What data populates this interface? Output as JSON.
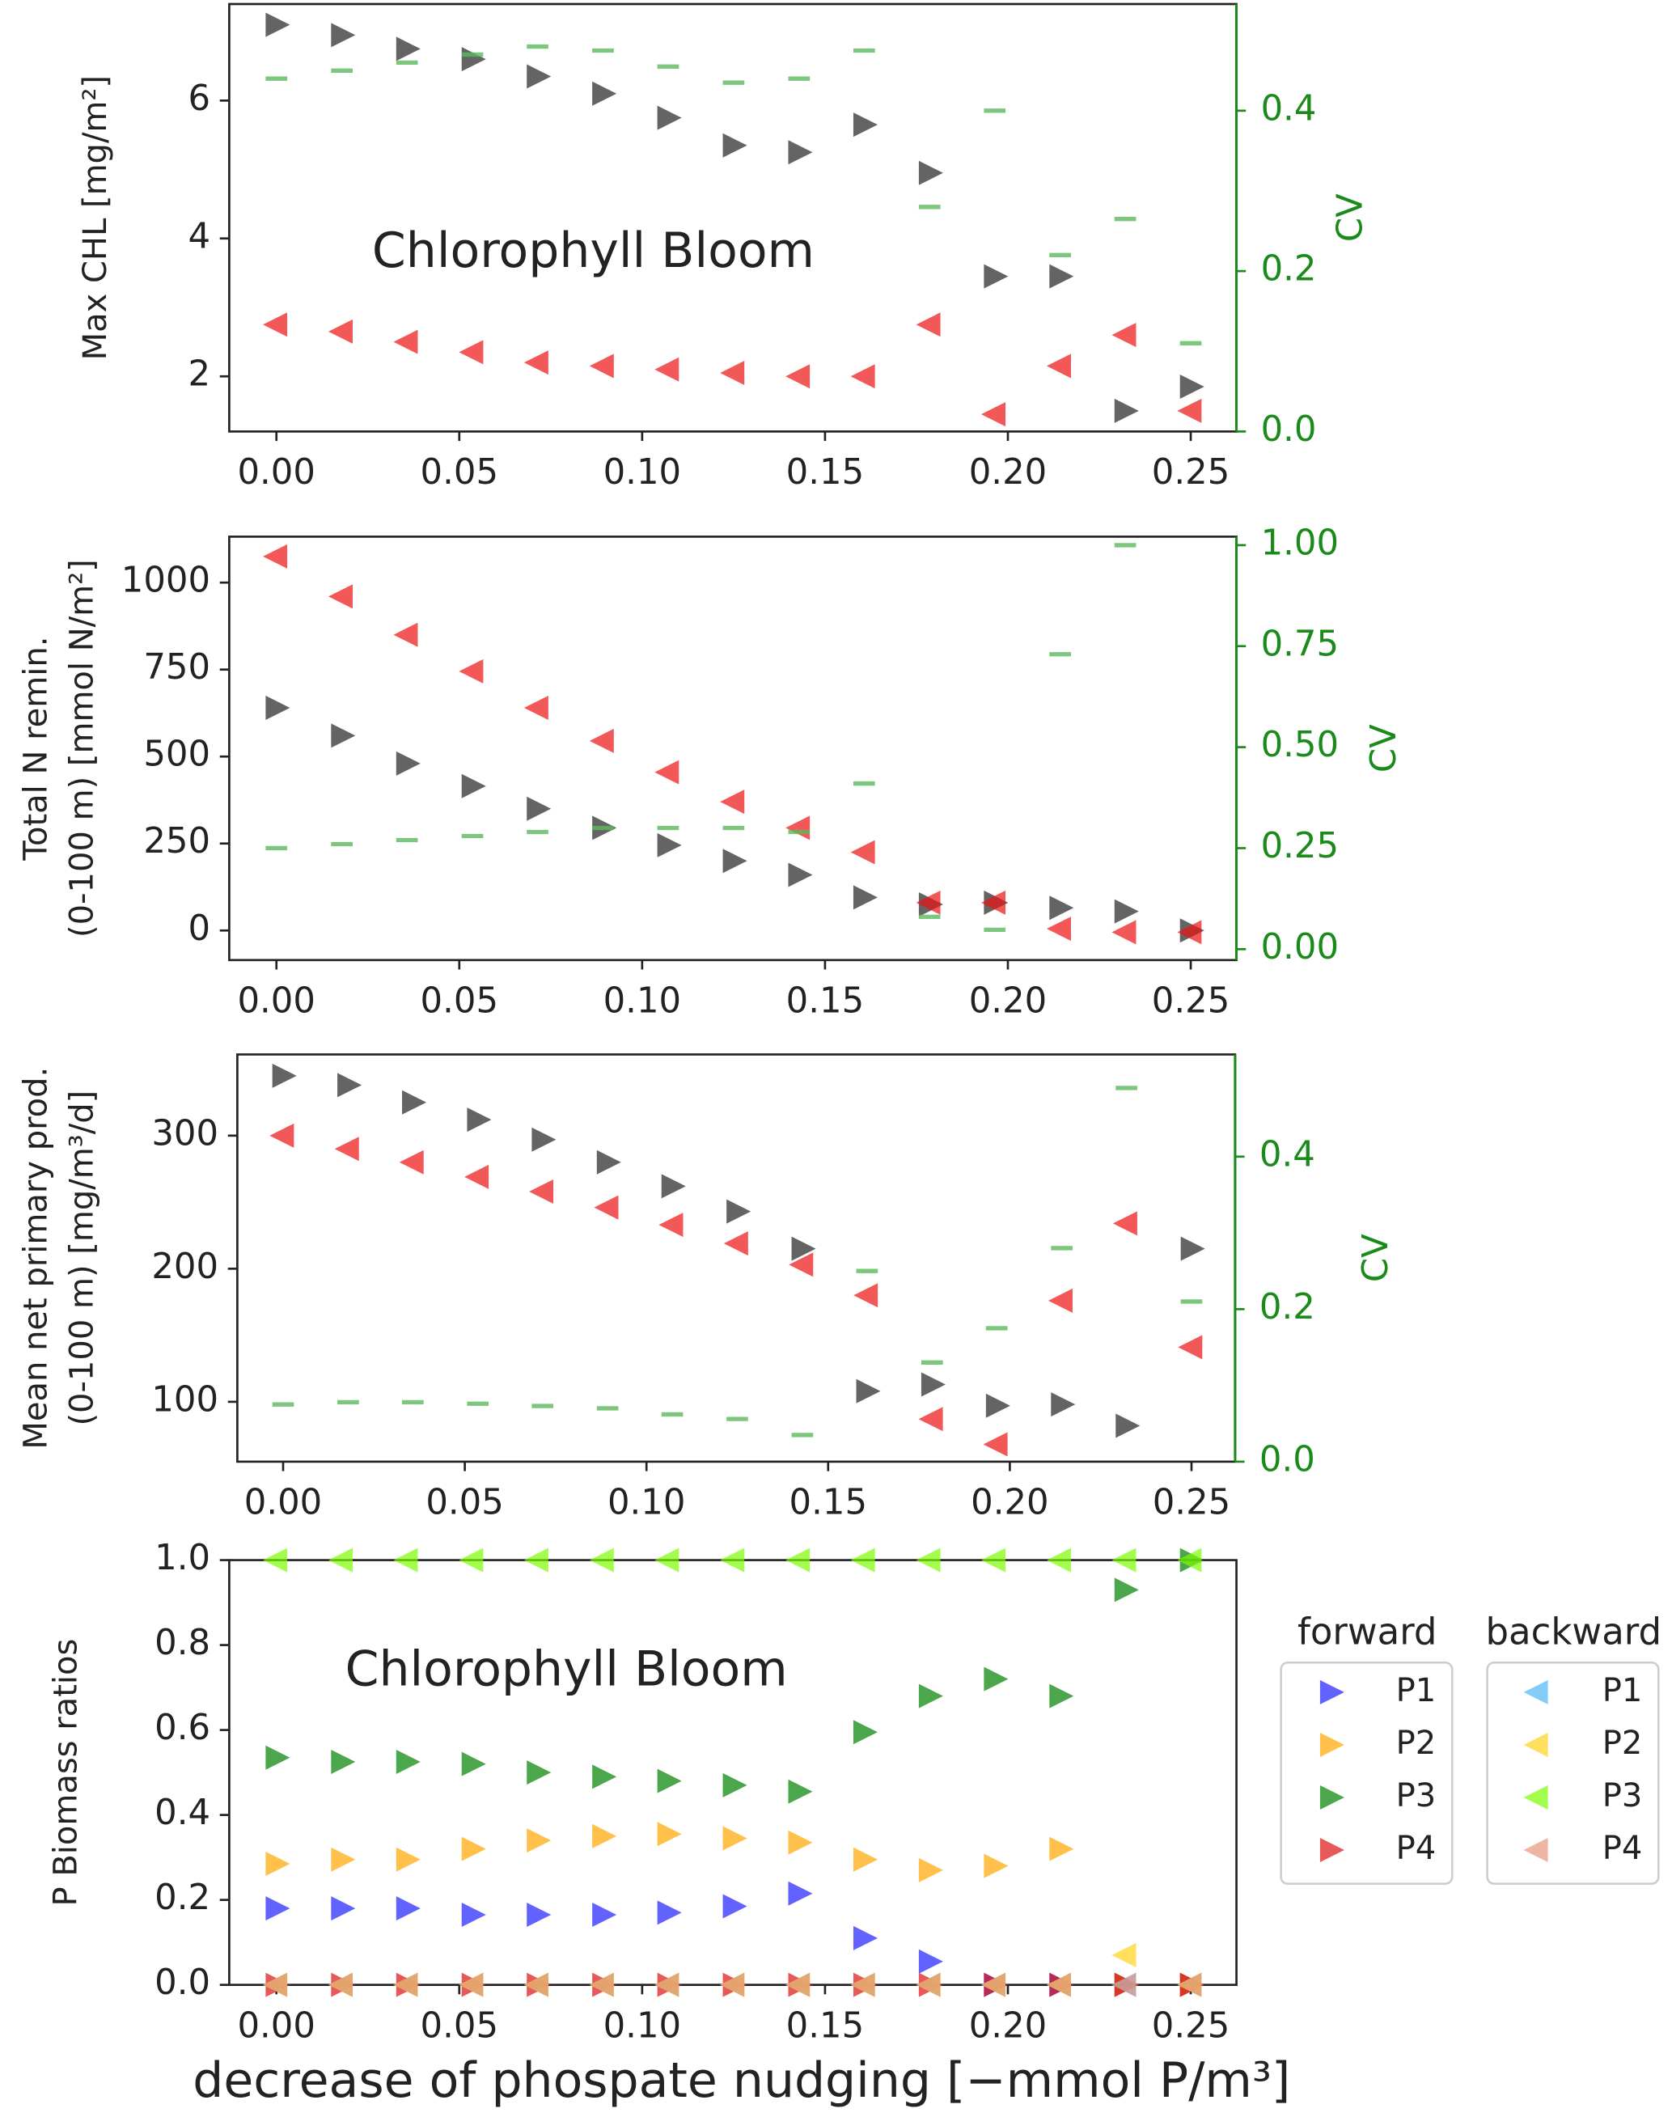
{
  "chart_data": [
    {
      "type": "scatter",
      "ylabel": [
        "Max CHL [mg/m²]"
      ],
      "y2label": "CV",
      "annotation": "Chlorophyll Bloom",
      "x": [
        0,
        0.0179,
        0.0357,
        0.0536,
        0.0714,
        0.0893,
        0.1071,
        0.125,
        0.1429,
        0.1607,
        0.1786,
        0.1964,
        0.2143,
        0.2321,
        0.25
      ],
      "xlim": [
        -0.0129,
        0.2625
      ],
      "xticks": [
        {
          "value": 0,
          "label": "0.00"
        },
        {
          "value": 0.05,
          "label": "0.05"
        },
        {
          "value": 0.1,
          "label": "0.10"
        },
        {
          "value": 0.15,
          "label": "0.15"
        },
        {
          "value": 0.2,
          "label": "0.20"
        },
        {
          "value": 0.25,
          "label": "0.25"
        }
      ],
      "ylim": [
        1.2,
        7.4
      ],
      "yticks": [
        2,
        4,
        6
      ],
      "y2lim": [
        0,
        0.533
      ],
      "y2ticks": [
        {
          "value": 0,
          "label": "0.0"
        },
        {
          "value": 0.2,
          "label": "0.2"
        },
        {
          "value": 0.4,
          "label": "0.4"
        }
      ],
      "y2color": "#1a8a1a",
      "series": [
        {
          "color": "#222222",
          "marker": ">",
          "values": [
            7.1,
            6.95,
            6.75,
            6.6,
            6.35,
            6.1,
            5.75,
            5.35,
            5.25,
            5.65,
            4.95,
            3.45,
            3.45,
            1.5,
            1.85
          ]
        },
        {
          "color": "#ee1111",
          "marker": "<",
          "values": [
            2.75,
            2.65,
            2.5,
            2.35,
            2.2,
            2.15,
            2.1,
            2.05,
            2.0,
            2.0,
            2.75,
            1.45,
            2.15,
            2.6,
            1.5
          ]
        },
        {
          "color": "#5cb85c",
          "marker": "_",
          "axis": "y2",
          "values": [
            0.44,
            0.45,
            0.46,
            0.47,
            0.48,
            0.475,
            0.455,
            0.435,
            0.44,
            0.475,
            0.28,
            0.4,
            0.22,
            0.265,
            0.11
          ]
        }
      ]
    },
    {
      "type": "scatter",
      "ylabel": [
        "Total N remin.",
        "(0-100 m) [mmol N/m²]"
      ],
      "y2label": "CV",
      "x": [
        0,
        0.0179,
        0.0357,
        0.0536,
        0.0714,
        0.0893,
        0.1071,
        0.125,
        0.1429,
        0.1607,
        0.1786,
        0.1964,
        0.2143,
        0.2321,
        0.25
      ],
      "xlim": [
        -0.0129,
        0.2625
      ],
      "xticks": [
        {
          "value": 0,
          "label": "0.00"
        },
        {
          "value": 0.05,
          "label": "0.05"
        },
        {
          "value": 0.1,
          "label": "0.10"
        },
        {
          "value": 0.15,
          "label": "0.15"
        },
        {
          "value": 0.2,
          "label": "0.20"
        },
        {
          "value": 0.25,
          "label": "0.25"
        }
      ],
      "ylim": [
        -85,
        1132
      ],
      "yticks": [
        0,
        250,
        500,
        750,
        1000
      ],
      "y2lim": [
        -0.027,
        1.021
      ],
      "y2ticks": [
        {
          "value": 0,
          "label": "0.00"
        },
        {
          "value": 0.25,
          "label": "0.25"
        },
        {
          "value": 0.5,
          "label": "0.50"
        },
        {
          "value": 0.75,
          "label": "0.75"
        },
        {
          "value": 1,
          "label": "1.00"
        }
      ],
      "y2color": "#1a8a1a",
      "series": [
        {
          "color": "#222222",
          "marker": ">",
          "values": [
            640,
            560,
            480,
            415,
            350,
            295,
            245,
            200,
            160,
            95,
            75,
            80,
            65,
            55,
            0
          ]
        },
        {
          "color": "#ee1111",
          "marker": "<",
          "values": [
            1075,
            960,
            850,
            745,
            640,
            545,
            455,
            370,
            295,
            225,
            80,
            80,
            5,
            -5,
            -5
          ]
        },
        {
          "color": "#5cb85c",
          "marker": "_",
          "axis": "y2",
          "values": [
            0.25,
            0.26,
            0.27,
            0.28,
            0.29,
            0.3,
            0.3,
            0.3,
            0.29,
            0.41,
            0.08,
            0.048,
            0.73,
            1.0,
            null
          ]
        }
      ]
    },
    {
      "type": "scatter",
      "ylabel": [
        "Mean net primary prod.",
        "(0-100 m) [mg/m³/d]"
      ],
      "y2label": "CV",
      "x": [
        0,
        0.0179,
        0.0357,
        0.0536,
        0.0714,
        0.0893,
        0.1071,
        0.125,
        0.1429,
        0.1607,
        0.1786,
        0.1964,
        0.2143,
        0.2321,
        0.25
      ],
      "xlim": [
        -0.0126,
        0.262
      ],
      "xticks": [
        {
          "value": 0,
          "label": "0.00"
        },
        {
          "value": 0.05,
          "label": "0.05"
        },
        {
          "value": 0.1,
          "label": "0.10"
        },
        {
          "value": 0.15,
          "label": "0.15"
        },
        {
          "value": 0.2,
          "label": "0.20"
        },
        {
          "value": 0.25,
          "label": "0.25"
        }
      ],
      "ylim": [
        55,
        361
      ],
      "yticks": [
        100,
        200,
        300
      ],
      "y2lim": [
        0,
        0.534
      ],
      "y2ticks": [
        {
          "value": 0,
          "label": "0.0"
        },
        {
          "value": 0.2,
          "label": "0.2"
        },
        {
          "value": 0.4,
          "label": "0.4"
        }
      ],
      "y2color": "#1a8a1a",
      "series": [
        {
          "color": "#222222",
          "marker": ">",
          "values": [
            345,
            338,
            325,
            312,
            297,
            280,
            262,
            243,
            215,
            108,
            113,
            97,
            98,
            82,
            215
          ]
        },
        {
          "color": "#ee1111",
          "marker": "<",
          "values": [
            300,
            290,
            280,
            269,
            258,
            246,
            233,
            219,
            203,
            180,
            87,
            68,
            176,
            234,
            141
          ]
        },
        {
          "color": "#5cb85c",
          "marker": "_",
          "axis": "y2",
          "values": [
            0.075,
            0.078,
            0.078,
            0.076,
            0.073,
            0.07,
            0.062,
            0.056,
            0.035,
            0.25,
            0.13,
            0.175,
            0.28,
            0.49,
            0.21
          ]
        }
      ]
    },
    {
      "type": "scatter",
      "ylabel": [
        "P Biomass ratios"
      ],
      "annotation": "Chlorophyll Bloom",
      "xlabel": "decrease of phospate nudging [−mmol P/m³]",
      "x": [
        0,
        0.0179,
        0.0357,
        0.0536,
        0.0714,
        0.0893,
        0.1071,
        0.125,
        0.1429,
        0.1607,
        0.1786,
        0.1964,
        0.2143,
        0.2321,
        0.25
      ],
      "xlim": [
        -0.0129,
        0.2625
      ],
      "xticks": [
        {
          "value": 0,
          "label": "0.00"
        },
        {
          "value": 0.05,
          "label": "0.05"
        },
        {
          "value": 0.1,
          "label": "0.10"
        },
        {
          "value": 0.15,
          "label": "0.15"
        },
        {
          "value": 0.2,
          "label": "0.20"
        },
        {
          "value": 0.25,
          "label": "0.25"
        }
      ],
      "ylim": [
        0,
        1
      ],
      "yticks": [
        {
          "value": 0,
          "label": "0.0"
        },
        {
          "value": 0.2,
          "label": "0.2"
        },
        {
          "value": 0.4,
          "label": "0.4"
        },
        {
          "value": 0.6,
          "label": "0.6"
        },
        {
          "value": 0.8,
          "label": "0.8"
        },
        {
          "value": 1,
          "label": "1.0"
        }
      ],
      "legend_titles": [
        "forward",
        "backward"
      ],
      "series": [
        {
          "name": "P1",
          "group": "forward",
          "color": "#1f1fff",
          "marker": ">",
          "values": [
            0.18,
            0.18,
            0.18,
            0.165,
            0.165,
            0.165,
            0.17,
            0.185,
            0.215,
            0.11,
            0.055,
            0,
            0,
            0,
            0
          ]
        },
        {
          "name": "P2",
          "group": "forward",
          "color": "#ffa500",
          "marker": ">",
          "values": [
            0.285,
            0.295,
            0.295,
            0.32,
            0.34,
            0.35,
            0.355,
            0.345,
            0.335,
            0.295,
            0.27,
            0.28,
            0.32,
            0,
            0
          ]
        },
        {
          "name": "P3",
          "group": "forward",
          "color": "#008000",
          "marker": ">",
          "values": [
            0.535,
            0.525,
            0.525,
            0.52,
            0.5,
            0.49,
            0.48,
            0.47,
            0.455,
            0.595,
            0.68,
            0.72,
            0.68,
            0.93,
            1.0
          ]
        },
        {
          "name": "P4",
          "group": "forward",
          "color": "#dd1111",
          "marker": ">",
          "values": [
            0,
            0,
            0,
            0,
            0,
            0,
            0,
            0,
            0,
            0,
            0,
            0,
            0,
            0,
            0
          ]
        },
        {
          "name": "P1",
          "group": "backward",
          "color": "#4fb8f5",
          "marker": "<",
          "values": [
            0,
            0,
            0,
            0,
            0,
            0,
            0,
            0,
            0,
            0,
            0,
            0,
            0,
            0,
            0
          ]
        },
        {
          "name": "P2",
          "group": "backward",
          "color": "#ffd21a",
          "marker": "<",
          "values": [
            0,
            0,
            0,
            0,
            0,
            0,
            0,
            0,
            0,
            0,
            0,
            0,
            0,
            0.07,
            0
          ]
        },
        {
          "name": "P3",
          "group": "backward",
          "color": "#7cfc00",
          "marker": "<",
          "values": [
            1,
            1,
            1,
            1,
            1,
            1,
            1,
            1,
            1,
            1,
            1,
            1,
            1,
            1,
            1
          ]
        },
        {
          "name": "P4",
          "group": "backward",
          "color": "#e9967a",
          "marker": "<",
          "values": [
            0,
            0,
            0,
            0,
            0,
            0,
            0,
            0,
            0,
            0,
            0,
            0,
            0,
            0,
            0
          ]
        }
      ]
    }
  ]
}
